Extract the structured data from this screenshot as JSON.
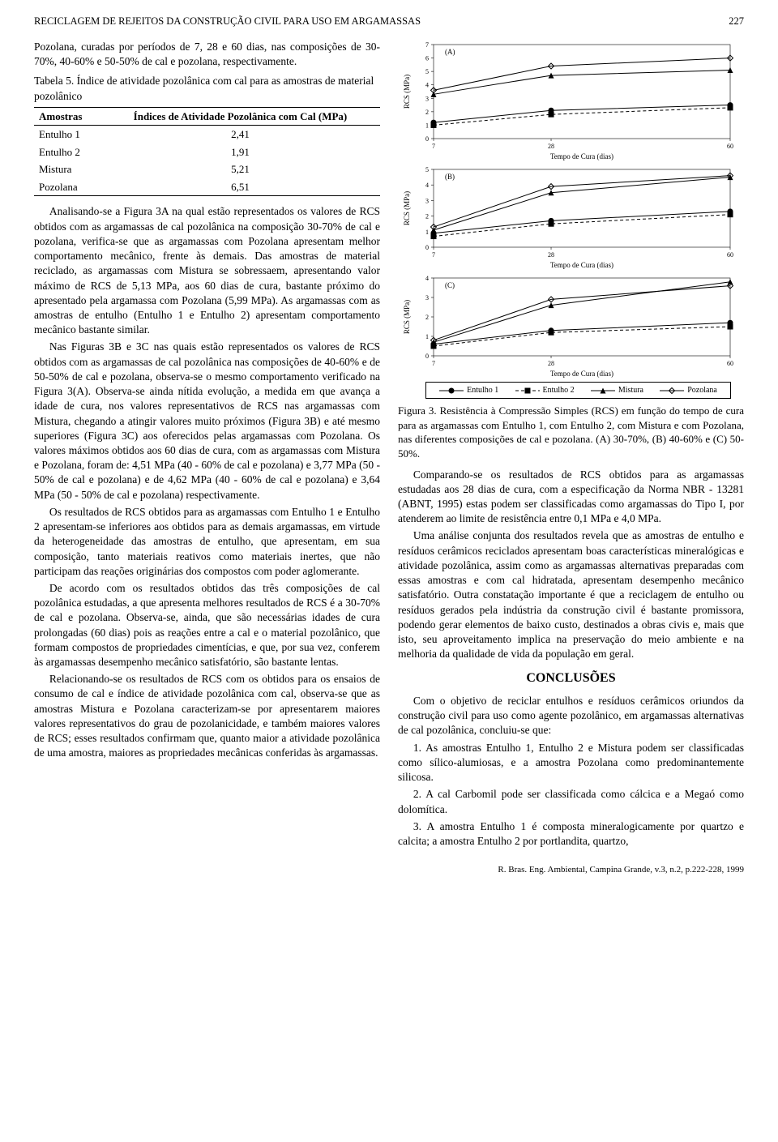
{
  "running_head": {
    "title": "RECICLAGEM DE REJEITOS DA CONSTRUÇÃO CIVIL PARA USO EM ARGAMASSAS",
    "page_no": "227"
  },
  "intro_para": "Pozolana, curadas por períodos de 7, 28 e 60 dias, nas composições de 30-70%, 40-60% e 50-50% de cal e pozolana, respectivamente.",
  "table5": {
    "caption": "Tabela 5. Índice de atividade pozolânica com cal para as amostras de material pozolânico",
    "col1": "Amostras",
    "col2": "Índices de Atividade Pozolânica com Cal (MPa)",
    "rows": [
      {
        "a": "Entulho 1",
        "v": "2,41"
      },
      {
        "a": "Entulho 2",
        "v": "1,91"
      },
      {
        "a": "Mistura",
        "v": "5,21"
      },
      {
        "a": "Pozolana",
        "v": "6,51"
      }
    ]
  },
  "left_paras": [
    "Analisando-se a Figura 3A na qual estão representados os valores de RCS obtidos com as argamassas de cal pozolânica na composição 30-70% de cal e pozolana, verifica-se que as argamassas com Pozolana apresentam melhor comportamento mecânico, frente às demais. Das amostras de material reciclado, as argamassas com Mistura se sobressaem, apresentando valor máximo de RCS de 5,13 MPa, aos 60 dias de cura, bastante próximo do apresentado pela argamassa com Pozolana (5,99 MPa). As argamassas com as amostras de entulho (Entulho 1 e Entulho 2) apresentam comportamento mecânico bastante similar.",
    "Nas Figuras 3B e 3C nas quais estão representados os valores de RCS obtidos com as argamassas de cal pozolânica nas composições de 40-60% e de 50-50% de cal e pozolana, observa-se o mesmo comportamento verificado na Figura 3(A). Observa-se ainda nítida evolução, a medida em que avança a idade de cura, nos valores representativos de RCS nas argamassas com Mistura, chegando a atingir valores muito próximos (Figura 3B) e até mesmo superiores (Figura 3C) aos oferecidos pelas argamassas com Pozolana. Os valores máximos obtidos aos 60 dias de cura, com as argamassas com Mistura e Pozolana, foram de: 4,51 MPa (40 - 60% de cal e pozolana) e 3,77 MPa (50 - 50% de cal e pozolana) e de 4,62 MPa (40 - 60% de cal e pozolana) e 3,64 MPa (50 - 50% de cal e pozolana) respectivamente.",
    "Os resultados de RCS obtidos para as argamassas com Entulho 1 e Entulho 2 apresentam-se inferiores aos obtidos para as demais argamassas, em virtude da heterogeneidade das amostras de entulho, que apresentam, em sua composição, tanto materiais reativos como materiais inertes, que não participam das reações originárias dos compostos com poder aglomerante.",
    "De acordo com os resultados obtidos das três composições de cal pozolânica estudadas, a que apresenta melhores resultados de RCS é a 30-70% de cal e pozolana. Observa-se, ainda, que são necessárias idades de cura prolongadas (60 dias) pois as reações entre a cal e o material pozolânico, que formam compostos de propriedades cimentícias, e que, por sua vez, conferem às argamassas desempenho mecânico satisfatório, são bastante lentas.",
    "Relacionando-se os resultados de RCS com os obtidos para os ensaios de consumo de cal e índice de atividade pozolânica com cal, observa-se que as amostras Mistura e Pozolana caracterizam-se por apresentarem maiores valores representativos do grau de pozolanicidade, e também maiores valores de RCS; esses resultados confirmam que, quanto maior a atividade pozolânica de uma amostra, maiores as propriedades mecânicas conferidas às argamassas."
  ],
  "charts": {
    "xlabel": "Tempo de Cura (dias)",
    "ylabel": "RCS (MPa)",
    "xticks": [
      7,
      28,
      60
    ],
    "label_fontsize": 9,
    "tick_fontsize": 8,
    "line_color": "#000000",
    "background": "#ffffff",
    "A": {
      "tag": "(A)",
      "ylim": [
        0,
        7
      ],
      "ytick_step": 1,
      "series": {
        "entulho1": {
          "marker": "circle",
          "dash": false,
          "y": [
            1.2,
            2.1,
            2.5
          ]
        },
        "entulho2": {
          "marker": "square",
          "dash": true,
          "y": [
            1.0,
            1.8,
            2.3
          ]
        },
        "mistura": {
          "marker": "triangle",
          "dash": false,
          "y": [
            3.3,
            4.7,
            5.1
          ]
        },
        "pozolana": {
          "marker": "diamond",
          "dash": false,
          "y": [
            3.6,
            5.4,
            6.0
          ]
        }
      }
    },
    "B": {
      "tag": "(B)",
      "ylim": [
        0,
        5
      ],
      "ytick_step": 1,
      "series": {
        "entulho1": {
          "marker": "circle",
          "dash": false,
          "y": [
            0.9,
            1.7,
            2.3
          ]
        },
        "entulho2": {
          "marker": "square",
          "dash": true,
          "y": [
            0.7,
            1.5,
            2.1
          ]
        },
        "mistura": {
          "marker": "triangle",
          "dash": false,
          "y": [
            1.1,
            3.5,
            4.5
          ]
        },
        "pozolana": {
          "marker": "diamond",
          "dash": false,
          "y": [
            1.3,
            3.9,
            4.6
          ]
        }
      }
    },
    "C": {
      "tag": "(C)",
      "ylim": [
        0,
        4
      ],
      "ytick_step": 1,
      "series": {
        "entulho1": {
          "marker": "circle",
          "dash": false,
          "y": [
            0.6,
            1.3,
            1.7
          ]
        },
        "entulho2": {
          "marker": "square",
          "dash": true,
          "y": [
            0.5,
            1.2,
            1.5
          ]
        },
        "mistura": {
          "marker": "triangle",
          "dash": false,
          "y": [
            0.7,
            2.6,
            3.8
          ]
        },
        "pozolana": {
          "marker": "diamond",
          "dash": false,
          "y": [
            0.8,
            2.9,
            3.6
          ]
        }
      }
    }
  },
  "legend": {
    "items": [
      {
        "label": "Entulho 1",
        "marker": "circle",
        "dash": false
      },
      {
        "label": "Entulho 2",
        "marker": "square",
        "dash": true
      },
      {
        "label": "Mistura",
        "marker": "triangle",
        "dash": false
      },
      {
        "label": "Pozolana",
        "marker": "diamond",
        "dash": false
      }
    ]
  },
  "fig3_caption": "Figura 3. Resistência à Compressão Simples (RCS) em função do tempo de cura para as argamassas com Entulho 1, com Entulho 2, com Mistura e com Pozolana, nas diferentes composições de cal e pozolana. (A) 30-70%, (B) 40-60% e (C) 50-50%.",
  "right_paras": [
    "Comparando-se os resultados de RCS obtidos para as argamassas estudadas aos 28 dias de cura, com a especificação da Norma NBR - 13281 (ABNT, 1995) estas podem ser classificadas como argamassas do Tipo I, por atenderem ao limite de resistência entre 0,1 MPa e 4,0 MPa.",
    "Uma análise conjunta dos resultados revela que as amostras de entulho e resíduos cerâmicos reciclados apresentam boas características mineralógicas e atividade pozolânica, assim como as argamassas alternativas preparadas com essas amostras e com cal hidratada, apresentam desempenho mecânico satisfatório. Outra constatação importante é que a reciclagem de entulho ou resíduos gerados pela indústria da construção civil é bastante promissora, podendo gerar elementos de baixo custo, destinados a obras civis e, mais que isto, seu aproveitamento implica na preservação do meio ambiente e na melhoria da qualidade de vida da população em geral."
  ],
  "conclusions": {
    "heading": "CONCLUSÕES",
    "paras": [
      "Com o objetivo de reciclar entulhos e resíduos cerâmicos oriundos da construção civil para uso como agente pozolânico, em argamassas alternativas de cal pozolânica, concluiu-se que:",
      "1. As amostras Entulho 1, Entulho 2 e Mistura podem ser classificadas como sílico-alumiosas, e a amostra Pozolana como predominantemente silicosa.",
      "2. A cal Carbomil pode ser classificada como cálcica e a Megaó como dolomítica.",
      "3. A amostra Entulho 1 é composta mineralogicamente por quartzo e calcita; a amostra Entulho 2 por portlandita, quartzo,"
    ]
  },
  "footer": "R. Bras. Eng. Ambiental, Campina Grande, v.3, n.2, p.222-228, 1999"
}
